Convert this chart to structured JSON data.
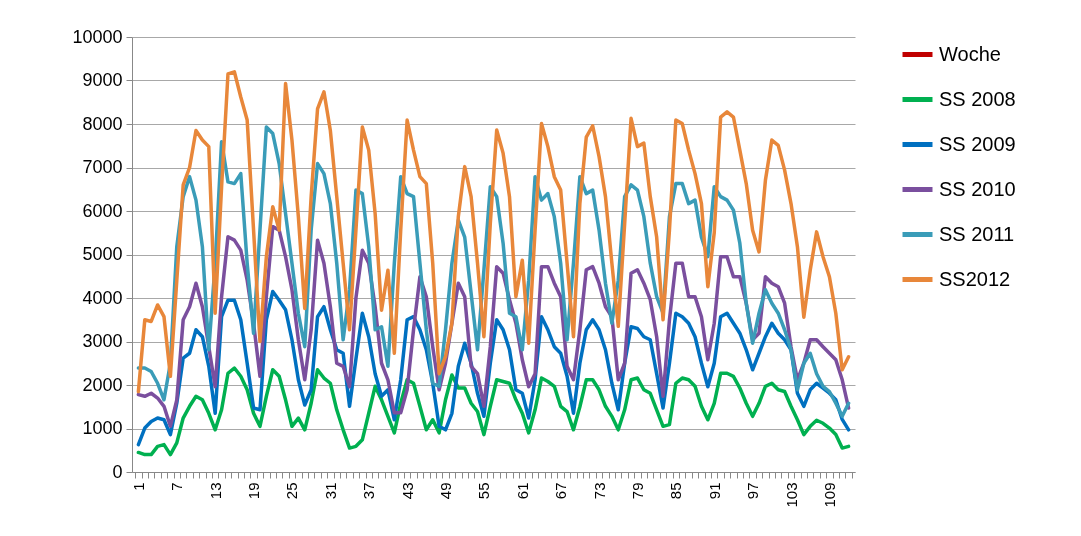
{
  "chart_data": {
    "type": "line",
    "categories": [
      "1",
      null,
      null,
      null,
      null,
      null,
      "7",
      null,
      null,
      null,
      null,
      null,
      "13",
      null,
      null,
      null,
      null,
      null,
      "19",
      null,
      null,
      null,
      null,
      null,
      "25",
      null,
      null,
      null,
      null,
      null,
      "31",
      null,
      null,
      null,
      null,
      null,
      "37",
      null,
      null,
      null,
      null,
      null,
      "43",
      null,
      null,
      null,
      null,
      null,
      "49",
      null,
      null,
      null,
      null,
      null,
      "55",
      null,
      null,
      null,
      null,
      null,
      "61",
      null,
      null,
      null,
      null,
      null,
      "67",
      null,
      null,
      null,
      null,
      null,
      "73",
      null,
      null,
      null,
      null,
      null,
      "79",
      null,
      null,
      null,
      null,
      null,
      "85",
      null,
      null,
      null,
      null,
      null,
      "91",
      null,
      null,
      null,
      null,
      null,
      "97",
      null,
      null,
      null,
      null,
      null,
      "103",
      null,
      null,
      null,
      null,
      null,
      "109",
      null,
      null,
      null
    ],
    "series": [
      {
        "name": "Woche",
        "color": "#c00000",
        "values": [
          null,
          null,
          null,
          null,
          null,
          null,
          null,
          null,
          null,
          null,
          null,
          null,
          null,
          null,
          null,
          null,
          null,
          null,
          null,
          null,
          null,
          null,
          null,
          null,
          null,
          null,
          null,
          null,
          null,
          null,
          null,
          null,
          null,
          null,
          null,
          null,
          null,
          null,
          null,
          null,
          null,
          null,
          null,
          null,
          null,
          null,
          null,
          null,
          null,
          null,
          null,
          null,
          null,
          null,
          null,
          null,
          null,
          null,
          null,
          null,
          null,
          null,
          null,
          null,
          null,
          null,
          null,
          null,
          null,
          null,
          null,
          null,
          null,
          null,
          null,
          null,
          null,
          null,
          null,
          null,
          null,
          null,
          null,
          null,
          null,
          null,
          null,
          null,
          null,
          null,
          null,
          null,
          null,
          null,
          null,
          null,
          null,
          null,
          null,
          null,
          null,
          null,
          null,
          null,
          null,
          null,
          null,
          null,
          null,
          null,
          null,
          null
        ]
      },
      {
        "name": "SS 2008",
        "color": "#00b050",
        "values": [
          450,
          400,
          400,
          590,
          630,
          400,
          670,
          1240,
          1510,
          1740,
          1660,
          1350,
          970,
          1430,
          2270,
          2390,
          2200,
          1890,
          1350,
          1050,
          1740,
          2350,
          2200,
          1660,
          1050,
          1240,
          970,
          1580,
          2350,
          2160,
          2040,
          1430,
          970,
          550,
          590,
          740,
          1350,
          1970,
          1660,
          1280,
          900,
          1580,
          2120,
          2040,
          1510,
          970,
          1200,
          900,
          1660,
          2230,
          1930,
          1930,
          1580,
          1390,
          860,
          1510,
          2120,
          2080,
          2040,
          1660,
          1350,
          900,
          1430,
          2160,
          2080,
          1970,
          1510,
          1390,
          970,
          1500,
          2120,
          2120,
          1890,
          1510,
          1280,
          970,
          1430,
          2120,
          2160,
          1890,
          1810,
          1430,
          1050,
          1090,
          2040,
          2160,
          2120,
          1970,
          1510,
          1200,
          1580,
          2270,
          2270,
          2200,
          1930,
          1580,
          1280,
          1580,
          1970,
          2040,
          1890,
          1850,
          1510,
          1200,
          860,
          1050,
          1190,
          1120,
          1010,
          860,
          550,
          590
        ]
      },
      {
        "name": "SS 2009",
        "color": "#0070c0",
        "values": [
          630,
          1010,
          1160,
          1240,
          1200,
          860,
          1580,
          2620,
          2730,
          3270,
          3110,
          2430,
          1350,
          3570,
          3950,
          3950,
          3500,
          2500,
          1470,
          1430,
          3500,
          4150,
          3950,
          3730,
          3040,
          2120,
          1540,
          1890,
          3570,
          3800,
          3270,
          2810,
          2730,
          1510,
          2600,
          3650,
          3110,
          2260,
          1740,
          1890,
          1200,
          2120,
          3500,
          3570,
          3270,
          2810,
          2040,
          1050,
          970,
          1350,
          2430,
          2960,
          2500,
          1810,
          1280,
          2500,
          3500,
          3270,
          2810,
          1890,
          1810,
          1240,
          2120,
          3570,
          3270,
          2880,
          2730,
          2200,
          1350,
          2500,
          3270,
          3500,
          3270,
          2810,
          2040,
          1430,
          2500,
          3340,
          3300,
          3110,
          3040,
          2260,
          1470,
          2500,
          3650,
          3570,
          3420,
          3110,
          2500,
          1960,
          2500,
          3570,
          3650,
          3420,
          3190,
          2810,
          2350,
          2730,
          3110,
          3420,
          3190,
          3040,
          2810,
          1810,
          1510,
          1890,
          2040,
          1930,
          1810,
          1660,
          1210,
          970
        ]
      },
      {
        "name": "SS 2010",
        "color": "#7a4f9e",
        "values": [
          1780,
          1740,
          1810,
          1700,
          1510,
          1050,
          1660,
          3500,
          3800,
          4340,
          3800,
          2880,
          1960,
          4030,
          5410,
          5330,
          5100,
          4410,
          3420,
          2200,
          4030,
          5640,
          5560,
          4950,
          4190,
          3040,
          2120,
          3270,
          5330,
          4800,
          3800,
          2500,
          2430,
          1960,
          4000,
          5100,
          4800,
          3800,
          2500,
          2120,
          1360,
          1360,
          1890,
          3270,
          4490,
          4030,
          2880,
          1890,
          2500,
          3420,
          4340,
          4030,
          2430,
          2260,
          1510,
          2880,
          4720,
          4570,
          3960,
          3420,
          2580,
          1960,
          2260,
          4720,
          4720,
          4340,
          4030,
          2430,
          2120,
          3270,
          4650,
          4720,
          4340,
          3800,
          3570,
          2120,
          2500,
          4570,
          4650,
          4340,
          3960,
          3110,
          1740,
          3500,
          4800,
          4800,
          4030,
          4030,
          3570,
          2580,
          3420,
          4950,
          4950,
          4490,
          4490,
          3880,
          3040,
          3190,
          4490,
          4340,
          4260,
          3880,
          2880,
          2120,
          2500,
          3040,
          3040,
          2880,
          2730,
          2580,
          2120,
          1470
        ]
      },
      {
        "name": "SS 2011",
        "color": "#3a9cb8",
        "values": [
          2390,
          2390,
          2310,
          2040,
          1660,
          2500,
          5180,
          6330,
          6790,
          6250,
          5180,
          2810,
          4800,
          7590,
          6670,
          6630,
          6860,
          4800,
          3190,
          5560,
          7930,
          7780,
          7090,
          5940,
          4800,
          3650,
          2880,
          5560,
          7090,
          6860,
          6170,
          4800,
          3040,
          4190,
          6480,
          6400,
          5180,
          3270,
          3340,
          2430,
          4800,
          6790,
          6400,
          6330,
          4800,
          3270,
          2040,
          1970,
          3270,
          4800,
          5790,
          5400,
          4110,
          2810,
          4640,
          6560,
          6330,
          5260,
          3650,
          3570,
          2810,
          4410,
          6790,
          6250,
          6400,
          5870,
          4800,
          3040,
          4800,
          6790,
          6400,
          6480,
          5560,
          4340,
          3420,
          4410,
          6330,
          6600,
          6480,
          5870,
          4800,
          4030,
          3650,
          5870,
          6630,
          6630,
          6170,
          6250,
          5400,
          4950,
          6560,
          6330,
          6250,
          6020,
          5260,
          3880,
          2960,
          3650,
          4190,
          3880,
          3650,
          3270,
          2810,
          1890,
          2500,
          2730,
          2260,
          1970,
          1850,
          1580,
          1280,
          1580
        ]
      },
      {
        "name": "SS2012",
        "color": "#e8873a",
        "values": [
          1850,
          3500,
          3460,
          3840,
          3570,
          2200,
          4400,
          6600,
          7000,
          7850,
          7630,
          7480,
          3650,
          6550,
          9150,
          9200,
          8620,
          8090,
          5560,
          3000,
          4950,
          6100,
          5560,
          8930,
          7630,
          5870,
          3760,
          6330,
          8350,
          8740,
          7850,
          6330,
          4800,
          3270,
          5560,
          7930,
          7400,
          5940,
          3720,
          4640,
          2730,
          5560,
          8090,
          7400,
          6790,
          6630,
          4800,
          2260,
          2650,
          3420,
          5870,
          7020,
          6330,
          4800,
          3110,
          5710,
          7860,
          7330,
          6330,
          4030,
          4870,
          2960,
          5560,
          8010,
          7480,
          6790,
          6480,
          4800,
          3110,
          6170,
          7700,
          7960,
          7250,
          6330,
          4800,
          3350,
          5710,
          8130,
          7480,
          7560,
          6330,
          5400,
          3500,
          5560,
          8090,
          8010,
          7400,
          6860,
          6170,
          4260,
          5500,
          8160,
          8280,
          8160,
          7400,
          6630,
          5560,
          5060,
          6710,
          7630,
          7510,
          6940,
          6170,
          5180,
          3560,
          4640,
          5520,
          4950,
          4490,
          3650,
          2350,
          2650
        ]
      }
    ],
    "ylim": [
      0,
      10000
    ],
    "yticks": [
      0,
      1000,
      2000,
      3000,
      4000,
      5000,
      6000,
      7000,
      8000,
      9000,
      10000
    ],
    "grid": "y",
    "legend": "right"
  }
}
